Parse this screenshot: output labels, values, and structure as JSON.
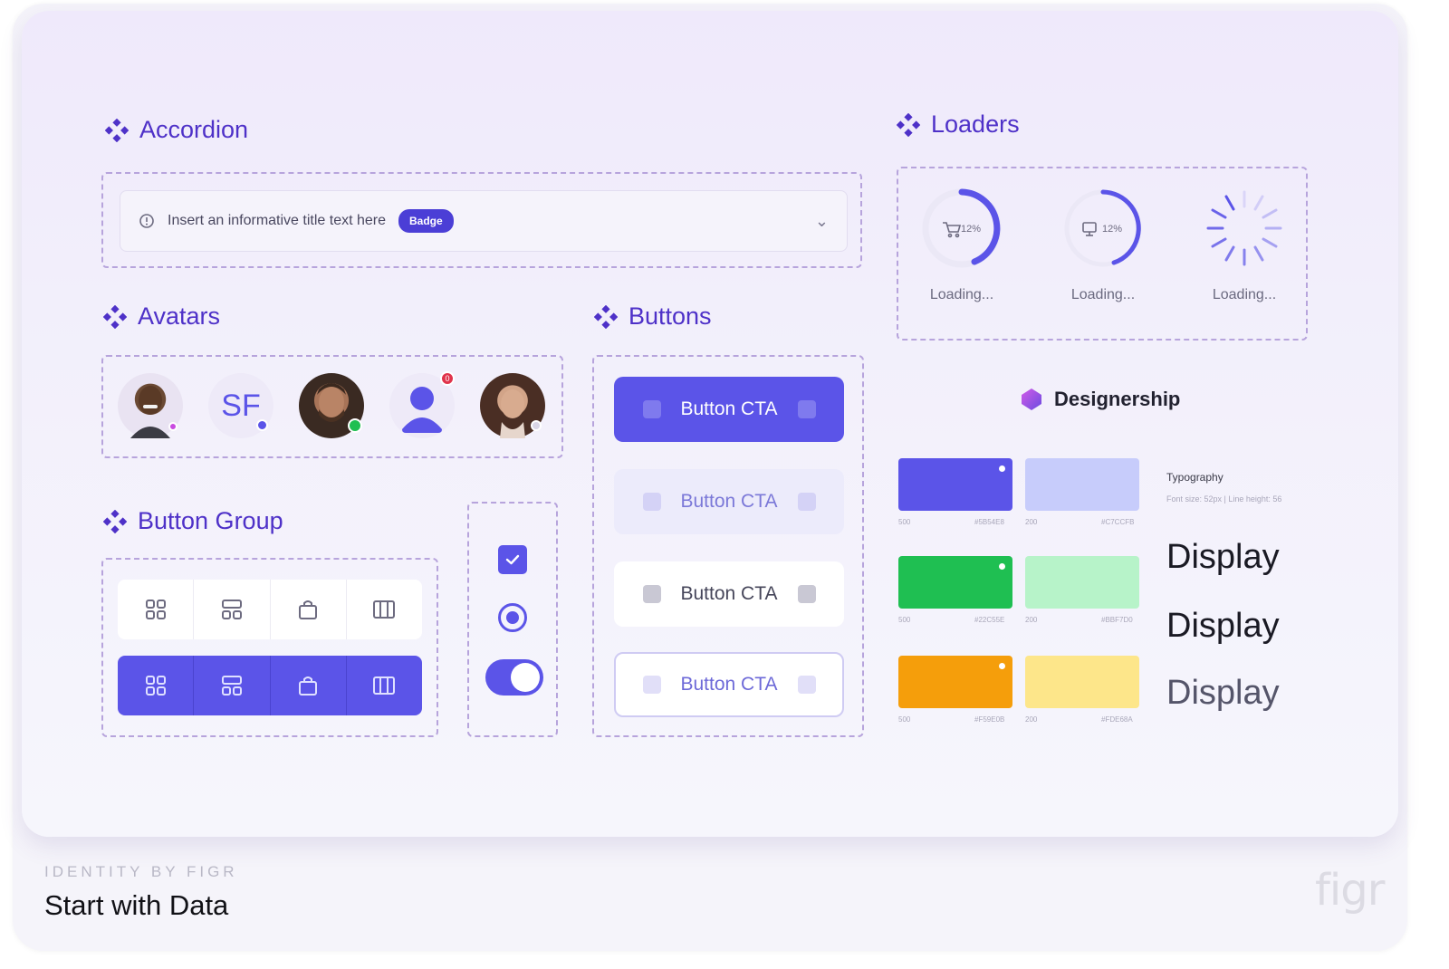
{
  "sections": {
    "accordion": "Accordion",
    "avatars": "Avatars",
    "buttons": "Buttons",
    "button_group": "Button Group",
    "loaders": "Loaders"
  },
  "accordion": {
    "title": "Insert an informative title text here",
    "badge": "Badge"
  },
  "avatars": [
    {
      "type": "photo",
      "status_color": "#c94be0"
    },
    {
      "type": "initials",
      "initials": "SF",
      "status_color": "#5b54e8"
    },
    {
      "type": "photo",
      "status_color": "#1fbf52"
    },
    {
      "type": "icon",
      "icon": "person-icon",
      "notification_count": "0"
    },
    {
      "type": "photo",
      "status_color": "#d9d6e6"
    }
  ],
  "buttons": [
    {
      "label": "Button CTA",
      "variant": "primary"
    },
    {
      "label": "Button CTA",
      "variant": "soft"
    },
    {
      "label": "Button CTA",
      "variant": "white"
    },
    {
      "label": "Button CTA",
      "variant": "outline"
    }
  ],
  "button_group": {
    "icons": [
      "grid-icon",
      "layout-icon",
      "bag-icon",
      "columns-icon"
    ]
  },
  "controls": {
    "checkbox_checked": true,
    "radio_selected": true,
    "toggle_on": true
  },
  "loaders": [
    {
      "center_text": "12%",
      "icon": "cart-icon",
      "label": "Loading..."
    },
    {
      "center_text": "12%",
      "icon": "screen-icon",
      "label": "Loading..."
    },
    {
      "center_text": "",
      "icon": "spinner-icon",
      "label": "Loading..."
    }
  ],
  "brand": {
    "name": "Designership"
  },
  "palette": [
    {
      "color": "#5b54e8",
      "label_left": "500",
      "label_right": "#5B54E8"
    },
    {
      "color": "#c7ccfb",
      "label_left": "200",
      "label_right": "#C7CCFB"
    },
    {
      "color": "#1fbf52",
      "label_left": "500",
      "label_right": "#22C55E"
    },
    {
      "color": "#b7f3c9",
      "label_left": "200",
      "label_right": "#BBF7D0"
    },
    {
      "color": "#f59e0b",
      "label_left": "500",
      "label_right": "#F59E0B"
    },
    {
      "color": "#fde68a",
      "label_left": "200",
      "label_right": "#FDE68A"
    }
  ],
  "typography": {
    "label": "Typography",
    "meta": "Font size: 52px | Line height: 56",
    "samples": [
      "Display",
      "Display",
      "Display"
    ]
  },
  "footer": {
    "label": "IDENTITY BY FIGR",
    "title": "Start with Data",
    "logo": "figr"
  },
  "colors": {
    "accent": "#5b54e8",
    "title": "#4e31c8",
    "dashed_border": "#b7a4dc"
  }
}
